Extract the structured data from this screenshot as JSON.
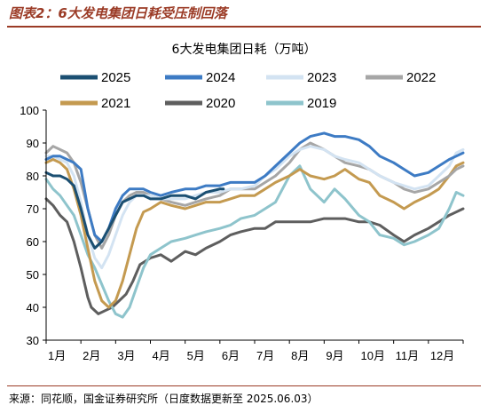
{
  "figure_title": "图表2：6大发电集团日耗受压制回落",
  "source_note": "来源：同花顺，国金证券研究所（日度数据更新至 2025.06.03）",
  "colors": {
    "2025": "#1b4f72",
    "2024": "#3d7bc4",
    "2023": "#d3e3f2",
    "2022": "#a6a6a6",
    "2021": "#c49a50",
    "2020": "#5e5e5e",
    "2019": "#8ec4cc"
  },
  "chart_data": {
    "type": "line",
    "title": "6大发电集团日耗（万吨）",
    "xlabel": "",
    "ylabel": "",
    "ylim": [
      30,
      100
    ],
    "yticks": [
      30,
      40,
      50,
      60,
      70,
      80,
      90,
      100
    ],
    "x_tick_labels": [
      "1月",
      "2月",
      "3月",
      "4月",
      "5月",
      "6月",
      "7月",
      "8月",
      "9月",
      "10月",
      "11月",
      "12月"
    ],
    "x_unit": "month_fraction",
    "legend": [
      "2025",
      "2024",
      "2023",
      "2022",
      "2021",
      "2020",
      "2019"
    ],
    "legend_placement": "top",
    "grid": false,
    "series": [
      {
        "name": "2020",
        "x": [
          0,
          0.2,
          0.4,
          0.6,
          0.8,
          1,
          1.2,
          1.3,
          1.5,
          1.7,
          1.9,
          2.1,
          2.3,
          2.5,
          2.7,
          3,
          3.3,
          3.6,
          4,
          4.3,
          4.6,
          5,
          5.3,
          5.6,
          6,
          6.3,
          6.6,
          7,
          7.3,
          7.6,
          8,
          8.3,
          8.6,
          9,
          9.3,
          9.6,
          10,
          10.3,
          10.6,
          11,
          11.3,
          11.6,
          12
        ],
        "y": [
          73,
          71,
          68,
          66,
          60,
          52,
          43,
          40,
          38,
          39,
          40,
          42,
          44,
          48,
          53,
          55,
          56,
          54,
          57,
          56,
          58,
          60,
          62,
          63,
          64,
          64,
          66,
          66,
          66,
          66,
          67,
          67,
          67,
          66,
          66,
          65,
          62,
          60,
          62,
          64,
          66,
          68,
          70
        ]
      },
      {
        "name": "2019",
        "x": [
          0,
          0.2,
          0.4,
          0.6,
          0.8,
          1,
          1.2,
          1.4,
          1.6,
          1.8,
          2,
          2.2,
          2.4,
          2.6,
          2.8,
          3,
          3.3,
          3.6,
          4,
          4.3,
          4.6,
          5,
          5.3,
          5.6,
          6,
          6.3,
          6.6,
          7,
          7.3,
          7.6,
          8,
          8.3,
          8.6,
          9,
          9.3,
          9.6,
          10,
          10.3,
          10.6,
          11,
          11.3,
          11.6,
          11.8,
          12
        ],
        "y": [
          79,
          76,
          74,
          71,
          68,
          62,
          56,
          52,
          47,
          42,
          38,
          37,
          40,
          46,
          52,
          56,
          58,
          60,
          61,
          62,
          63,
          64,
          65,
          67,
          68,
          70,
          72,
          80,
          83,
          76,
          72,
          76,
          73,
          68,
          66,
          62,
          61,
          59,
          60,
          62,
          64,
          70,
          75,
          74
        ]
      },
      {
        "name": "2021",
        "x": [
          0,
          0.2,
          0.4,
          0.6,
          0.8,
          1,
          1.2,
          1.4,
          1.6,
          1.8,
          2,
          2.2,
          2.4,
          2.6,
          2.8,
          3,
          3.3,
          3.6,
          4,
          4.3,
          4.6,
          5,
          5.3,
          5.6,
          6,
          6.3,
          6.6,
          7,
          7.3,
          7.6,
          8,
          8.3,
          8.6,
          9,
          9.3,
          9.6,
          10,
          10.3,
          10.6,
          11,
          11.3,
          11.6,
          11.8,
          12
        ],
        "y": [
          84,
          85,
          84,
          82,
          76,
          68,
          58,
          48,
          42,
          40,
          42,
          48,
          56,
          64,
          69,
          70,
          72,
          71,
          70,
          71,
          72,
          72,
          73,
          74,
          74,
          76,
          78,
          80,
          82,
          80,
          79,
          80,
          82,
          79,
          78,
          74,
          72,
          70,
          72,
          74,
          76,
          80,
          83,
          84
        ]
      },
      {
        "name": "2022",
        "x": [
          0,
          0.2,
          0.4,
          0.6,
          0.8,
          1,
          1.2,
          1.4,
          1.6,
          1.8,
          2,
          2.2,
          2.4,
          2.6,
          2.8,
          3,
          3.3,
          3.6,
          4,
          4.3,
          4.6,
          5,
          5.3,
          5.6,
          6,
          6.3,
          6.6,
          7,
          7.3,
          7.6,
          8,
          8.3,
          8.6,
          9,
          9.3,
          9.6,
          10,
          10.3,
          10.6,
          11,
          11.3,
          11.6,
          11.8,
          12
        ],
        "y": [
          87,
          89,
          88,
          87,
          84,
          78,
          70,
          62,
          58,
          62,
          68,
          72,
          74,
          75,
          75,
          74,
          73,
          72,
          71,
          72,
          73,
          74,
          76,
          76,
          76,
          78,
          80,
          84,
          88,
          90,
          88,
          86,
          84,
          83,
          82,
          80,
          78,
          76,
          75,
          76,
          78,
          80,
          82,
          83
        ]
      },
      {
        "name": "2023",
        "x": [
          0,
          0.2,
          0.4,
          0.6,
          0.8,
          1,
          1.2,
          1.4,
          1.6,
          1.8,
          2,
          2.2,
          2.4,
          2.6,
          2.8,
          3,
          3.3,
          3.6,
          4,
          4.3,
          4.6,
          5,
          5.3,
          5.6,
          6,
          6.3,
          6.6,
          7,
          7.3,
          7.6,
          8,
          8.3,
          8.6,
          9,
          9.3,
          9.6,
          10,
          10.3,
          10.6,
          11,
          11.3,
          11.6,
          11.8,
          12
        ],
        "y": [
          86,
          86,
          85,
          84,
          80,
          72,
          62,
          55,
          52,
          56,
          62,
          68,
          72,
          74,
          74,
          74,
          73,
          73,
          73,
          74,
          75,
          75,
          76,
          76,
          77,
          80,
          82,
          86,
          88,
          89,
          88,
          86,
          85,
          84,
          82,
          80,
          78,
          77,
          76,
          77,
          80,
          83,
          87,
          88
        ]
      },
      {
        "name": "2024",
        "x": [
          0,
          0.2,
          0.4,
          0.6,
          0.8,
          1,
          1.2,
          1.4,
          1.6,
          1.8,
          2,
          2.2,
          2.4,
          2.6,
          2.8,
          3,
          3.3,
          3.6,
          4,
          4.3,
          4.6,
          5,
          5.3,
          5.6,
          6,
          6.3,
          6.6,
          7,
          7.3,
          7.6,
          8,
          8.3,
          8.6,
          9,
          9.3,
          9.6,
          10,
          10.3,
          10.6,
          11,
          11.3,
          11.6,
          11.8,
          12
        ],
        "y": [
          85,
          86,
          86,
          85,
          84,
          82,
          70,
          62,
          60,
          64,
          70,
          74,
          76,
          76,
          76,
          75,
          74,
          75,
          76,
          76,
          77,
          77,
          78,
          78,
          78,
          80,
          83,
          87,
          90,
          92,
          93,
          92,
          92,
          91,
          89,
          86,
          84,
          82,
          80,
          81,
          83,
          85,
          86,
          87
        ]
      },
      {
        "name": "2025",
        "x": [
          0,
          0.2,
          0.4,
          0.6,
          0.8,
          1,
          1.2,
          1.4,
          1.6,
          1.8,
          2,
          2.2,
          2.4,
          2.6,
          2.8,
          3,
          3.3,
          3.6,
          4,
          4.3,
          4.6,
          5,
          5.1
        ],
        "y": [
          81,
          80,
          80,
          79,
          77,
          70,
          62,
          58,
          60,
          64,
          68,
          72,
          73,
          74,
          74,
          73,
          73,
          74,
          74,
          73,
          75,
          76,
          76
        ]
      }
    ]
  }
}
